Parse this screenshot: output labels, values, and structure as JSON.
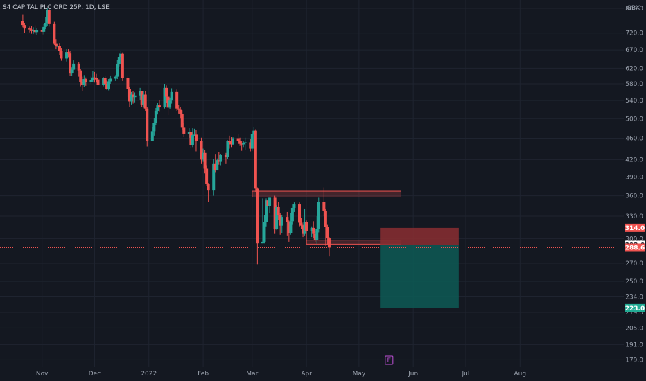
{
  "title": "S4 CAPITAL PLC ORD 25P, 1D, LSE",
  "currency": "GBX",
  "colors": {
    "background": "#141821",
    "grid": "#1f2430",
    "up": "#26a69a",
    "down": "#ef5350",
    "axis_text": "#9aa1ad",
    "tag_red": "#f05350",
    "tag_green": "#22ab94",
    "tag_white": "#ffffff",
    "zone_red": "#8a2e31",
    "zone_green": "#0d5a55",
    "earnings_badge": "#c050d8"
  },
  "chart_data": {
    "type": "candlestick",
    "scale": "log",
    "ylim": [
      175,
      800
    ],
    "y_ticks": [
      "800.0",
      "720.0",
      "670.0",
      "620.0",
      "580.0",
      "540.0",
      "500.0",
      "460.0",
      "420.0",
      "390.0",
      "360.0",
      "330.0",
      "300.0",
      "270.0",
      "250.0",
      "234.0",
      "219.0",
      "205.0",
      "191.0",
      "179.0"
    ],
    "x_ticks": [
      "Nov",
      "Dec",
      "2022",
      "Feb",
      "Mar",
      "Apr",
      "May",
      "Jun",
      "Jul",
      "Aug"
    ],
    "candles": [
      [
        757,
        745,
        780,
        738
      ],
      [
        745,
        734,
        752,
        720
      ],
      [
        734,
        731,
        740,
        722
      ],
      [
        731,
        726,
        741,
        718
      ],
      [
        726,
        730,
        738,
        717
      ],
      [
        730,
        723,
        744,
        716
      ],
      [
        723,
        728,
        735,
        714
      ],
      [
        728,
        724,
        736,
        716
      ],
      [
        724,
        739,
        748,
        716
      ],
      [
        739,
        752,
        772,
        732
      ],
      [
        752,
        793,
        802,
        742
      ],
      [
        793,
        750,
        798,
        740
      ],
      [
        750,
        689,
        755,
        684
      ],
      [
        689,
        681,
        700,
        672
      ],
      [
        681,
        681,
        689,
        674
      ],
      [
        681,
        668,
        690,
        656
      ],
      [
        668,
        646,
        674,
        640
      ],
      [
        646,
        664,
        672,
        638
      ],
      [
        664,
        660,
        672,
        648
      ],
      [
        660,
        606,
        667,
        600
      ],
      [
        606,
        616,
        622,
        600
      ],
      [
        616,
        632,
        641,
        608
      ],
      [
        632,
        614,
        636,
        598
      ],
      [
        614,
        585,
        618,
        574
      ],
      [
        585,
        578,
        598,
        562
      ],
      [
        578,
        592,
        602,
        572
      ],
      [
        592,
        584,
        596,
        575
      ],
      [
        584,
        590,
        599,
        580
      ],
      [
        590,
        596,
        612,
        585
      ],
      [
        596,
        594,
        610,
        583
      ],
      [
        594,
        591,
        605,
        583
      ],
      [
        591,
        578,
        595,
        566
      ],
      [
        578,
        594,
        597,
        574
      ],
      [
        594,
        580,
        601,
        574
      ],
      [
        580,
        568,
        588,
        565
      ],
      [
        568,
        586,
        592,
        564
      ],
      [
        586,
        593,
        601,
        580
      ],
      [
        593,
        598,
        602,
        587
      ],
      [
        598,
        631,
        642,
        592
      ],
      [
        631,
        650,
        661,
        625
      ],
      [
        650,
        659,
        667,
        642
      ],
      [
        659,
        595,
        663,
        587
      ],
      [
        595,
        567,
        602,
        548
      ],
      [
        567,
        538,
        572,
        526
      ],
      [
        538,
        554,
        560,
        531
      ],
      [
        554,
        548,
        563,
        533
      ],
      [
        548,
        552,
        559,
        536
      ],
      [
        552,
        562,
        570,
        542
      ],
      [
        562,
        531,
        563,
        526
      ],
      [
        531,
        554,
        562,
        524
      ],
      [
        554,
        522,
        562,
        517
      ],
      [
        522,
        454,
        525,
        444
      ],
      [
        454,
        474,
        483,
        458
      ],
      [
        474,
        491,
        501,
        465
      ],
      [
        491,
        517,
        523,
        486
      ],
      [
        517,
        529,
        535,
        509
      ],
      [
        529,
        526,
        541,
        516
      ],
      [
        526,
        570,
        580,
        522
      ],
      [
        570,
        549,
        576,
        535
      ],
      [
        549,
        524,
        550,
        508
      ],
      [
        524,
        540,
        547,
        520
      ],
      [
        540,
        560,
        569,
        533
      ],
      [
        560,
        522,
        566,
        517
      ],
      [
        522,
        519,
        530,
        511
      ],
      [
        519,
        510,
        526,
        500
      ],
      [
        510,
        481,
        518,
        476
      ],
      [
        481,
        469,
        491,
        462
      ],
      [
        469,
        473,
        480,
        461
      ],
      [
        473,
        447,
        477,
        441
      ],
      [
        447,
        466,
        480,
        443
      ],
      [
        466,
        467,
        479,
        464
      ],
      [
        467,
        455,
        477,
        435
      ],
      [
        455,
        420,
        461,
        412
      ],
      [
        420,
        432,
        440,
        416
      ],
      [
        432,
        404,
        437,
        396
      ],
      [
        404,
        379,
        410,
        375
      ],
      [
        379,
        368,
        380,
        351
      ],
      [
        368,
        412,
        421,
        360
      ],
      [
        412,
        401,
        429,
        397
      ],
      [
        401,
        419,
        422,
        401
      ],
      [
        419,
        416,
        434,
        411
      ],
      [
        416,
        428,
        430,
        410
      ],
      [
        428,
        425,
        432,
        412
      ],
      [
        425,
        454,
        456,
        421
      ],
      [
        454,
        453,
        465,
        440
      ],
      [
        453,
        448,
        462,
        443
      ],
      [
        448,
        460,
        462,
        447
      ],
      [
        460,
        455,
        469,
        449
      ],
      [
        455,
        449,
        461,
        445
      ],
      [
        449,
        448,
        454,
        436
      ],
      [
        448,
        451,
        455,
        443
      ],
      [
        451,
        452,
        461,
        437
      ],
      [
        452,
        440,
        458,
        435
      ],
      [
        440,
        468,
        469,
        436
      ],
      [
        468,
        475,
        483,
        466
      ],
      [
        475,
        371,
        478,
        366
      ],
      [
        371,
        294,
        373,
        269
      ],
      [
        294,
        296,
        356,
        294
      ],
      [
        296,
        322,
        331,
        294
      ],
      [
        322,
        353,
        356,
        316
      ],
      [
        353,
        345,
        358,
        328
      ],
      [
        345,
        357,
        357,
        334
      ],
      [
        357,
        312,
        360,
        306
      ],
      [
        312,
        343,
        346,
        311
      ],
      [
        343,
        332,
        351,
        325
      ],
      [
        332,
        317,
        335,
        305
      ],
      [
        317,
        329,
        332,
        307
      ],
      [
        329,
        322,
        336,
        304
      ],
      [
        322,
        307,
        324,
        296
      ],
      [
        307,
        323,
        334,
        305
      ],
      [
        323,
        342,
        347,
        318
      ],
      [
        342,
        347,
        350,
        336
      ],
      [
        347,
        321,
        350,
        315
      ],
      [
        321,
        317,
        328,
        313
      ],
      [
        317,
        306,
        318,
        302
      ],
      [
        306,
        322,
        341,
        304
      ],
      [
        322,
        310,
        324,
        297
      ],
      [
        310,
        314,
        316,
        302
      ],
      [
        314,
        306,
        323,
        301
      ],
      [
        306,
        298,
        310,
        295
      ],
      [
        298,
        313,
        330,
        293
      ],
      [
        313,
        351,
        357,
        308
      ],
      [
        351,
        338,
        373,
        330
      ],
      [
        338,
        315,
        341,
        291
      ],
      [
        315,
        301,
        318,
        292
      ],
      [
        301,
        288.6,
        302,
        278
      ]
    ],
    "x_start": "2021-10-25",
    "x_end": "2022-08-29",
    "first_candle_date": "2021-10-21",
    "resistance_zone": {
      "from": "2022-03-01",
      "to": "2022-05-25",
      "low": 358,
      "high": 367
    },
    "support_zone": {
      "from": "2022-04-01",
      "to": "2022-05-25",
      "low": 293,
      "high": 298
    },
    "position": {
      "from": "2022-05-13",
      "to": "2022-06-27",
      "stop": 314.0,
      "entry": 292.0,
      "target": 223.0
    },
    "price_tags": [
      {
        "label": "314.0",
        "value": 314.0,
        "style": "red"
      },
      {
        "label": "292.0",
        "value": 292.0,
        "style": "white"
      },
      {
        "label": "288.6",
        "value": 288.6,
        "style": "red"
      },
      {
        "label": "223.0",
        "value": 223.0,
        "style": "green"
      }
    ],
    "last_price": 288.6,
    "earnings_marker": {
      "label": "E",
      "date": "2022-05-18"
    }
  }
}
